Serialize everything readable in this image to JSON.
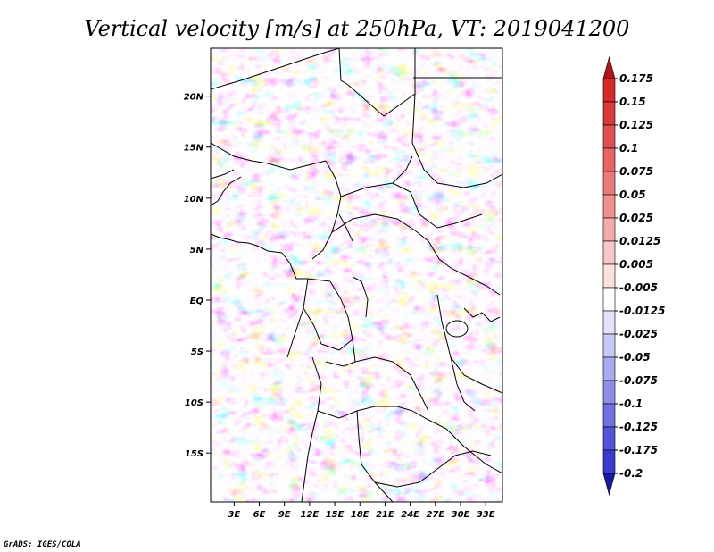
{
  "chart_data": {
    "type": "heatmap",
    "title": "Vertical velocity [m/s] at 250hPa, VT: 2019041200",
    "x_tick_labels": [
      "3E",
      "6E",
      "9E",
      "12E",
      "15E",
      "18E",
      "21E",
      "24E",
      "27E",
      "30E",
      "33E"
    ],
    "x_tick_values": [
      3,
      6,
      9,
      12,
      15,
      18,
      21,
      24,
      27,
      30,
      33
    ],
    "y_tick_labels": [
      "20N",
      "15N",
      "10N",
      "5N",
      "EQ",
      "5S",
      "10S",
      "15S"
    ],
    "y_tick_values": [
      20,
      15,
      10,
      5,
      0,
      -5,
      -10,
      -15
    ],
    "xlim": [
      0.2,
      35.0
    ],
    "ylim": [
      -19.8,
      24.7
    ],
    "units": "m/s",
    "level": "250hPa",
    "valid_time": "2019041200",
    "colorbar": {
      "labels": [
        "0.175",
        "0.15",
        "0.125",
        "0.1",
        "0.075",
        "0.05",
        "0.025",
        "0.0125",
        "0.005",
        "-0.005",
        "-0.0125",
        "-0.025",
        "-0.05",
        "-0.075",
        "-0.1",
        "-0.125",
        "-0.175",
        "-0.2"
      ],
      "colors": [
        "#d42a2a",
        "#da3a3a",
        "#e05050",
        "#e56565",
        "#ea7a7a",
        "#ef9090",
        "#f4aaaa",
        "#f8c8c8",
        "#fbe0e0",
        "#ffffff",
        "#e2e2fa",
        "#c8c8f4",
        "#aaaaee",
        "#8e8ee8",
        "#7070e0",
        "#5454d6",
        "#3a3acb",
        "#2525b8",
        "#1a1aa0"
      ],
      "extend": "both"
    }
  },
  "credit": "GrADS: IGES/COLA"
}
